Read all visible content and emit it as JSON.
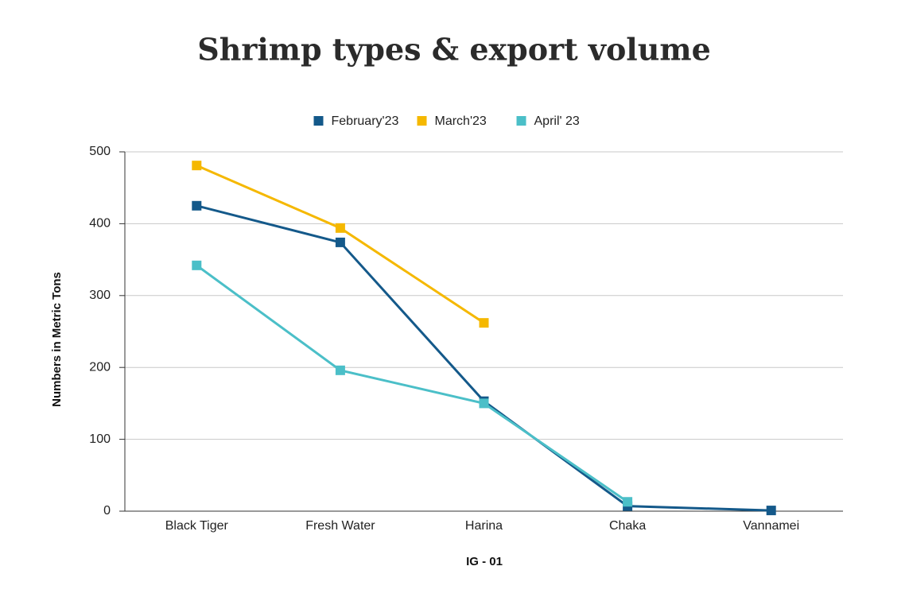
{
  "chart_data": {
    "type": "line",
    "title": "Shrimp types & export volume",
    "x_label": "IG - 01",
    "y_label": "Numbers in Metric Tons",
    "categories": [
      "Black Tiger",
      "Fresh Water",
      "Harina",
      "Chaka",
      "Vannamei"
    ],
    "series": [
      {
        "name": "February'23",
        "color": "#14598a",
        "values": [
          425,
          374,
          153,
          7,
          1
        ]
      },
      {
        "name": "March'23",
        "color": "#f5b800",
        "values": [
          481,
          394,
          262,
          null,
          null
        ]
      },
      {
        "name": "April' 23",
        "color": "#4bbfc8",
        "values": [
          342,
          196,
          150,
          13,
          null
        ]
      }
    ],
    "ylim": [
      0,
      500
    ],
    "yticks": [
      0,
      100,
      200,
      300,
      400,
      500
    ],
    "grid": true,
    "legend": "top"
  }
}
